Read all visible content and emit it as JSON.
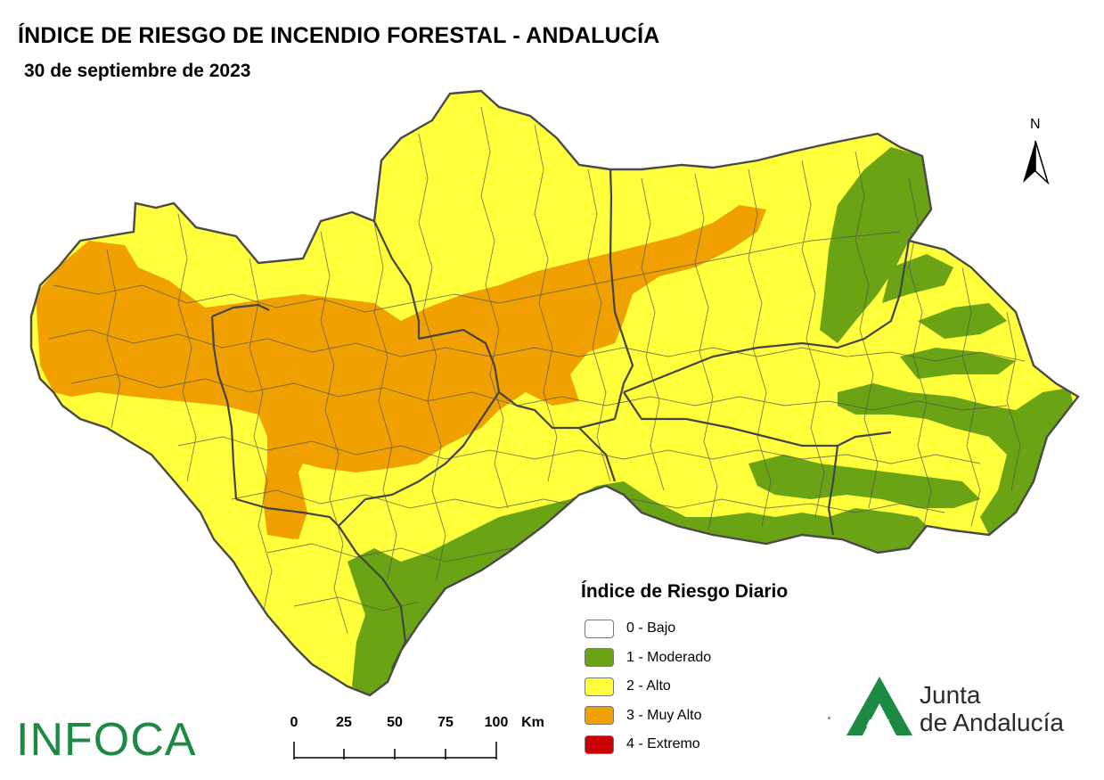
{
  "title": "ÍNDICE DE RIESGO DE INCENDIO FORESTAL - ANDALUCÍA",
  "subtitle": "30 de septiembre de 2023",
  "north_label": "N",
  "legend": {
    "title": "Índice de Riesgo Diario",
    "items": [
      {
        "label": "0 - Bajo",
        "color": "#ffffff"
      },
      {
        "label": "1 - Moderado",
        "color": "#6aa314"
      },
      {
        "label": "2 - Alto",
        "color": "#ffff3b"
      },
      {
        "label": "3 - Muy Alto",
        "color": "#f0a000"
      },
      {
        "label": "4 - Extremo",
        "color": "#cc0000"
      }
    ]
  },
  "scale": {
    "labels": [
      "0",
      "25",
      "50",
      "75",
      "100"
    ],
    "unit": "Km"
  },
  "logos": {
    "infoca": "INFOCA",
    "junta_line1": "Junta",
    "junta_line2": "de Andalucía",
    "junta_color": "#1d8a43"
  },
  "colors": {
    "moderado": "#6aa314",
    "alto": "#ffff3b",
    "muy_alto": "#f0a000",
    "border": "#555555"
  }
}
